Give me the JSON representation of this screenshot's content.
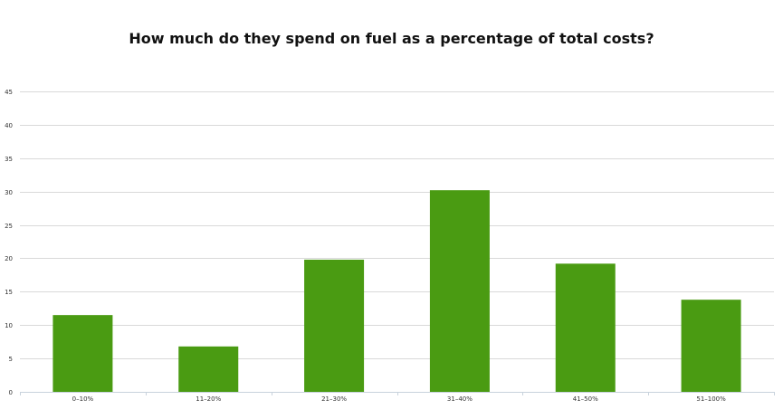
{
  "chart_data": {
    "type": "bar",
    "title": "How much do they spend on fuel as a percentage of total costs?",
    "xlabel": "",
    "ylabel": "",
    "categories": [
      "0–10%",
      "11–20%",
      "21–30%",
      "31–40%",
      "41–50%",
      "51–100%"
    ],
    "values": [
      11.5,
      6.8,
      19.8,
      30.2,
      19.2,
      13.8
    ],
    "ylim": [
      0,
      45
    ],
    "yticks": [
      0,
      5,
      10,
      15,
      20,
      25,
      30,
      35,
      40,
      45
    ],
    "grid": true,
    "legend": "none",
    "bar_color": "#4a9b12"
  }
}
